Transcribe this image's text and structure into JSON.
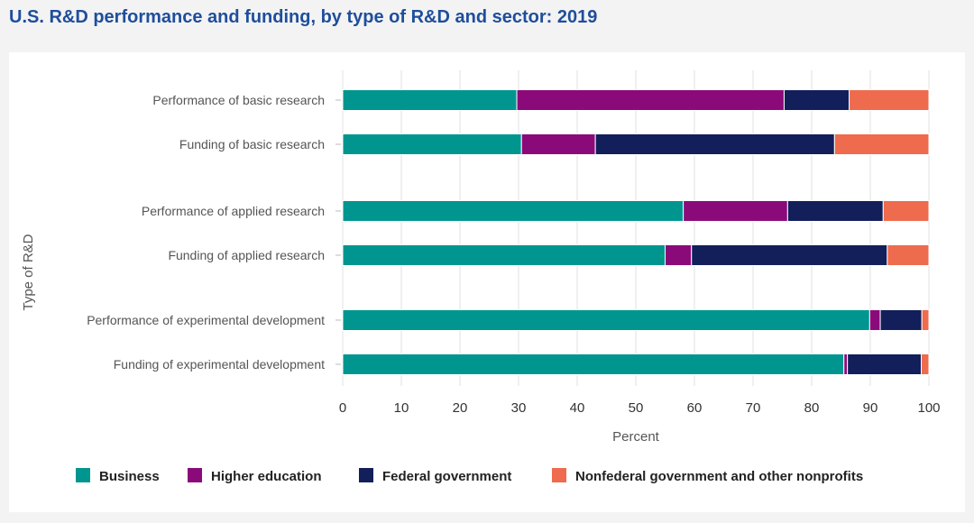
{
  "title": "U.S. R&D performance and funding, by type of R&D and sector: 2019",
  "colors": {
    "business": "#00968f",
    "higher_education": "#8b0a7a",
    "federal_government": "#121f5b",
    "nonfederal": "#ee6b4d"
  },
  "chart_data": {
    "type": "bar",
    "orientation": "horizontal",
    "stacked": true,
    "title": "U.S. R&D performance and funding, by type of R&D and sector: 2019",
    "xlabel": "Percent",
    "ylabel": "Type of R&D",
    "xlim": [
      0,
      100
    ],
    "xticks": [
      "0",
      "10",
      "20",
      "30",
      "40",
      "50",
      "60",
      "70",
      "80",
      "90",
      "100"
    ],
    "grid": true,
    "legend_position": "bottom",
    "categories": [
      "Performance of basic research",
      "Funding of basic research",
      "Performance of applied research",
      "Funding of applied research",
      "Performance of experimental development",
      "Funding of experimental development"
    ],
    "series": [
      {
        "name": "Business",
        "color": "#00968f",
        "values": [
          29.7,
          30.5,
          58.1,
          55.0,
          89.9,
          85.5
        ]
      },
      {
        "name": "Higher education",
        "color": "#8b0a7a",
        "values": [
          45.6,
          12.6,
          17.8,
          4.5,
          1.8,
          0.6
        ]
      },
      {
        "name": "Federal government",
        "color": "#121f5b",
        "values": [
          11.1,
          40.8,
          16.3,
          33.4,
          7.1,
          12.6
        ]
      },
      {
        "name": "Nonfederal government and other nonprofits",
        "color": "#ee6b4d",
        "values": [
          13.6,
          16.1,
          7.8,
          7.1,
          1.2,
          1.3
        ]
      }
    ]
  }
}
